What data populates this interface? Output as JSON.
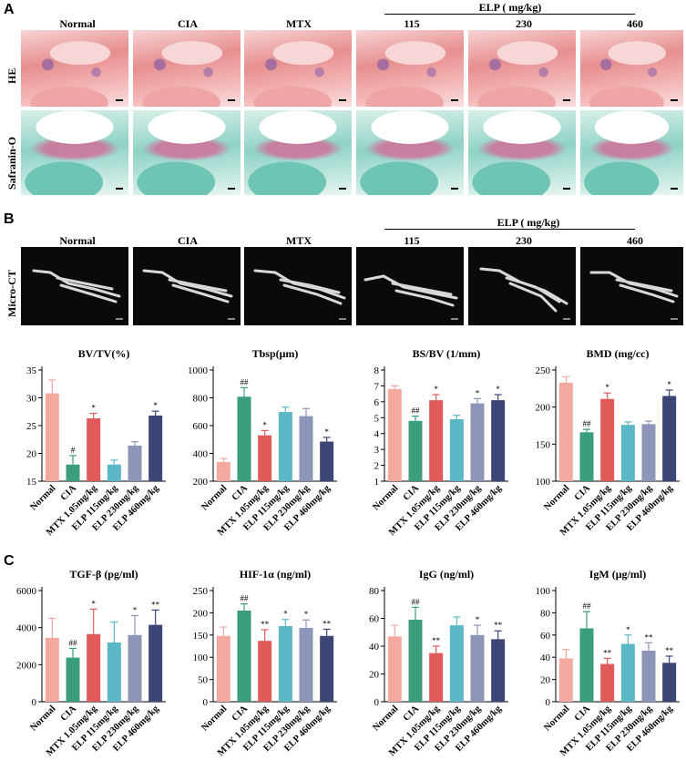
{
  "panels": {
    "a": "A",
    "b": "B",
    "c": "C"
  },
  "groups": [
    "Normal",
    "CIA",
    "MTX",
    "115",
    "230",
    "460"
  ],
  "elp_title": "ELP ( mg/kg)",
  "row_labels": {
    "he": "HE",
    "safranin": "Safranin-O",
    "microct": "Micro-CT"
  },
  "colors": [
    "#f4a9a0",
    "#3a9e7e",
    "#e05a5a",
    "#5cb7c6",
    "#8d95b8",
    "#3b4576"
  ],
  "chart_data": [
    {
      "type": "bar",
      "title": "BV/TV(%)",
      "ylim": [
        15,
        35
      ],
      "yticks": [
        15,
        20,
        25,
        30,
        35
      ],
      "categories": [
        "Normal",
        "CIA",
        "MTX 1.05mg/kg",
        "ELP 115mg/kg",
        "ELP 230mg/kg",
        "ELP 460mg/kg"
      ],
      "values": [
        30.8,
        18.0,
        26.3,
        18.0,
        21.4,
        26.8
      ],
      "errors": [
        2.4,
        1.6,
        0.9,
        0.8,
        0.7,
        0.8
      ],
      "annotations": [
        "",
        "#",
        "*",
        "",
        "",
        "*"
      ]
    },
    {
      "type": "bar",
      "title": "Tbsp(μm)",
      "ylim": [
        200,
        1000
      ],
      "yticks": [
        200,
        400,
        600,
        800,
        1000
      ],
      "categories": [
        "Normal",
        "CIA",
        "MTX 1.05mg/kg",
        "ELP 115mg/kg",
        "ELP 230mg/kg",
        "ELP 460mg/kg"
      ],
      "values": [
        338,
        808,
        530,
        698,
        668,
        485
      ],
      "errors": [
        25,
        65,
        35,
        35,
        55,
        30
      ],
      "annotations": [
        "",
        "##",
        "*",
        "",
        "",
        "*"
      ]
    },
    {
      "type": "bar",
      "title": "BS/BV (1/mm)",
      "ylim": [
        1,
        8
      ],
      "yticks": [
        1,
        2,
        3,
        4,
        5,
        6,
        7,
        8
      ],
      "categories": [
        "Normal",
        "CIA",
        "MTX 1.05mg/kg",
        "ELP 115mg/kg",
        "ELP 230mg/kg",
        "ELP 460mg/kg"
      ],
      "values": [
        6.8,
        4.8,
        6.1,
        4.9,
        5.9,
        6.1
      ],
      "errors": [
        0.2,
        0.3,
        0.35,
        0.25,
        0.3,
        0.35
      ],
      "annotations": [
        "",
        "##",
        "*",
        "",
        "*",
        "*"
      ]
    },
    {
      "type": "bar",
      "title": "BMD (mg/cc)",
      "ylim": [
        100,
        250
      ],
      "yticks": [
        100,
        150,
        200,
        250
      ],
      "categories": [
        "Normal",
        "CIA",
        "MTX 1.05mg/kg",
        "ELP 115mg/kg",
        "ELP 230mg/kg",
        "ELP 460mg/kg"
      ],
      "values": [
        233,
        166,
        211,
        176,
        177,
        215
      ],
      "errors": [
        8,
        4,
        8,
        4,
        4,
        8
      ],
      "annotations": [
        "",
        "##",
        "*",
        "",
        "",
        "*"
      ]
    },
    {
      "type": "bar",
      "title": "TGF-β (pg/ml)",
      "ylim": [
        0,
        6000
      ],
      "yticks": [
        0,
        2000,
        4000,
        6000
      ],
      "categories": [
        "Normal",
        "CIA",
        "MTX 1.05mg/kg",
        "ELP 115mg/kg",
        "ELP 230mg/kg",
        "ELP 460mg/kg"
      ],
      "values": [
        3450,
        2380,
        3650,
        3200,
        3600,
        4150
      ],
      "errors": [
        1050,
        500,
        1350,
        1100,
        1050,
        800
      ],
      "annotations": [
        "",
        "##",
        "*",
        "",
        "*",
        "**"
      ]
    },
    {
      "type": "bar",
      "title": "HIF-1α (ng/ml)",
      "ylim": [
        0,
        250
      ],
      "yticks": [
        0,
        50,
        100,
        150,
        200,
        250
      ],
      "categories": [
        "Normal",
        "CIA",
        "MTX 1.05mg/kg",
        "ELP 115mg/kg",
        "ELP 230mg/kg",
        "ELP 460mg/kg"
      ],
      "values": [
        148,
        205,
        137,
        170,
        166,
        148
      ],
      "errors": [
        20,
        15,
        25,
        15,
        18,
        15
      ],
      "annotations": [
        "",
        "##",
        "**",
        "*",
        "*",
        "**"
      ]
    },
    {
      "type": "bar",
      "title": "IgG (ng/ml)",
      "ylim": [
        0,
        80
      ],
      "yticks": [
        0,
        20,
        40,
        60,
        80
      ],
      "categories": [
        "Normal",
        "CIA",
        "MTX 1.05mg/kg",
        "ELP 115mg/kg",
        "ELP 230mg/kg",
        "ELP 460mg/kg"
      ],
      "values": [
        47,
        59,
        35,
        55,
        48,
        45
      ],
      "errors": [
        8,
        9,
        5,
        6,
        7,
        6
      ],
      "annotations": [
        "",
        "##",
        "**",
        "",
        "*",
        "**"
      ]
    },
    {
      "type": "bar",
      "title": "IgM (μg/ml)",
      "ylim": [
        0,
        100
      ],
      "yticks": [
        0,
        20,
        40,
        60,
        80,
        100
      ],
      "categories": [
        "Normal",
        "CIA",
        "MTX 1.05mg/kg",
        "ELP 115mg/kg",
        "ELP 230mg/kg",
        "ELP 460mg/kg"
      ],
      "values": [
        39,
        66,
        34,
        52,
        46,
        35
      ],
      "errors": [
        8,
        15,
        5,
        8,
        7,
        6
      ],
      "annotations": [
        "",
        "##",
        "**",
        "*",
        "**",
        "**"
      ]
    }
  ]
}
